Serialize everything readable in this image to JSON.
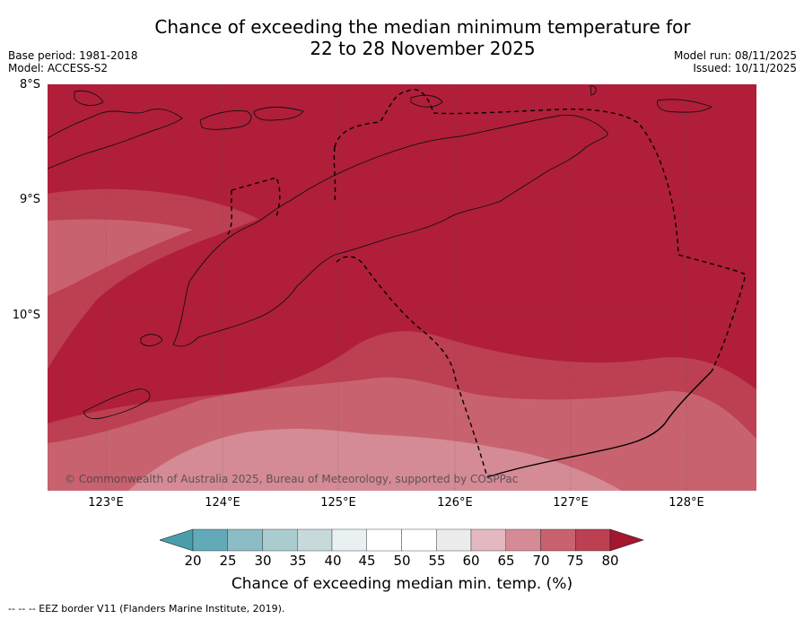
{
  "title_line1": "Chance of exceeding the median minimum temperature for",
  "title_line2": "22 to 28 November 2025",
  "base_period": "Base period: 1981-2018",
  "model": "Model: ACCESS-S2",
  "model_run": "Model run: 08/11/2025",
  "issued": "Issued: 10/11/2025",
  "map": {
    "lat_labels": [
      "8°S",
      "9°S",
      "10°S"
    ],
    "lon_labels": [
      "123°E",
      "124°E",
      "125°E",
      "126°E",
      "127°E",
      "128°E"
    ],
    "copyright": "© Commonwealth of Australia 2025, Bureau of Meteorology, supported by COSPPac"
  },
  "colorbar": {
    "ticks": [
      "20",
      "25",
      "30",
      "35",
      "40",
      "45",
      "50",
      "55",
      "60",
      "65",
      "70",
      "75",
      "80"
    ],
    "colors": [
      "#4a9eab",
      "#62aab8",
      "#8cbcc6",
      "#a9cccf",
      "#c6dadc",
      "#e8f0f2",
      "#ffffff",
      "#ffffff",
      "#ececec",
      "#e3b8c0",
      "#d48b95",
      "#c8626f",
      "#bd3f52",
      "#a5162f"
    ],
    "label": "Chance of exceeding median min. temp. (%)"
  },
  "footer": "--  --  -- EEZ border V11 (Flanders Marine Institute, 2019)."
}
